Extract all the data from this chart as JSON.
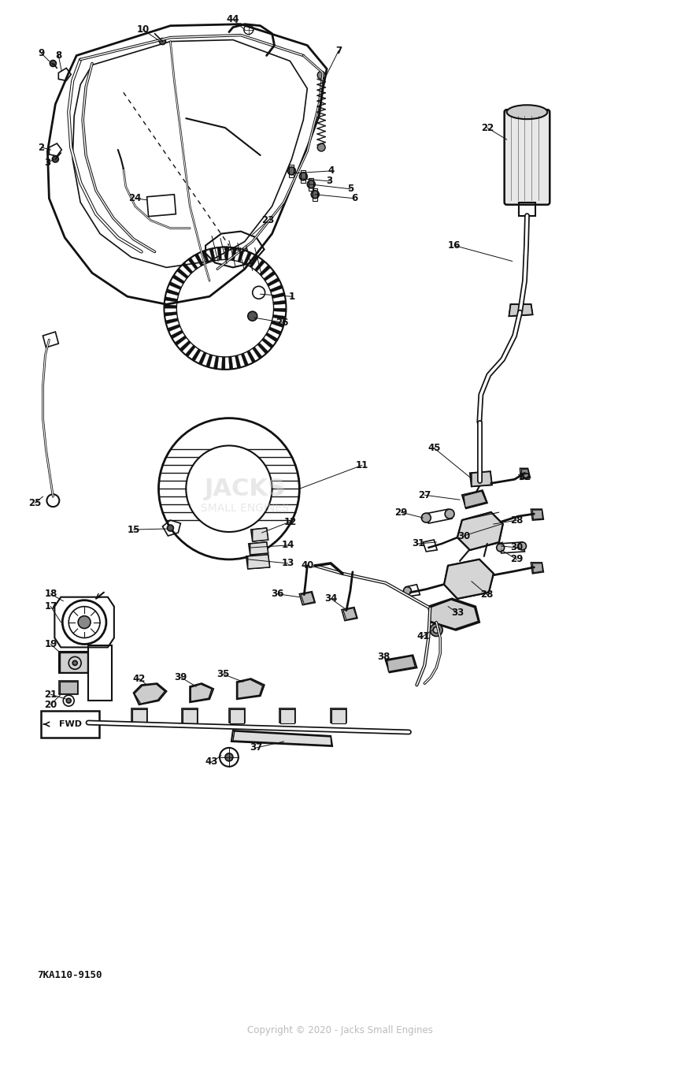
{
  "bg_color": "#ffffff",
  "lc": "#111111",
  "fig_width": 8.65,
  "fig_height": 13.68,
  "dpi": 100,
  "copyright_text": "Copyright © 2020 - Jacks Small Engines",
  "diagram_code": "7KA110-9150"
}
